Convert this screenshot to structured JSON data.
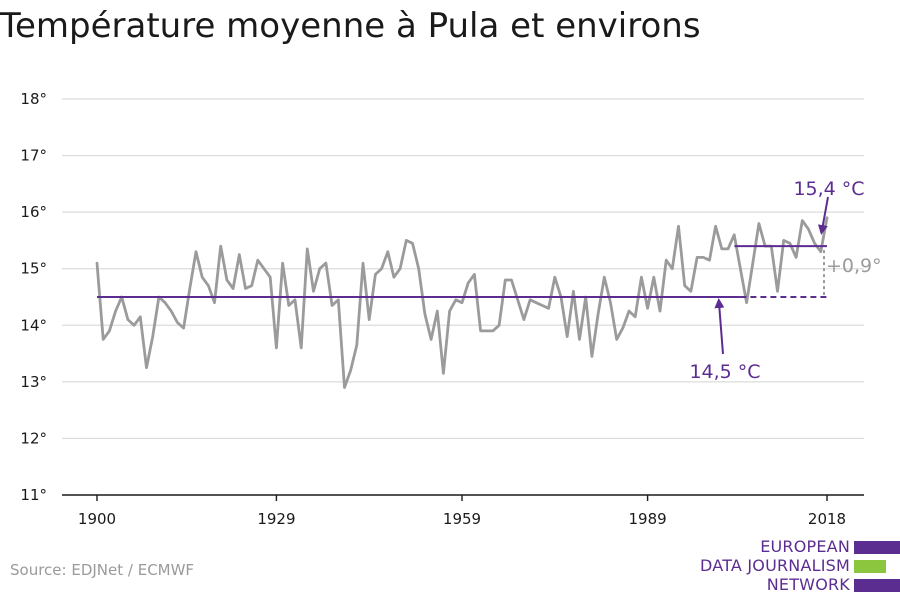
{
  "title": "Température moyenne à Pula et environs",
  "source": "Source: EDJNet / ECMWF",
  "logo": {
    "lines": [
      "EUROPEAN",
      "DATA JOURNALISM",
      "NETWORK"
    ],
    "colors": {
      "text": "#5c2d91",
      "bar": "#5c2d91",
      "accent": "#8cc63f"
    }
  },
  "colors": {
    "series": "#9b9b9b",
    "baseline": "#5c2d91",
    "grid": "#dcdcdc",
    "axis": "#1a1a1a",
    "label": "#1a1a1a",
    "delta": "#9b9b9b"
  },
  "chart_data": {
    "type": "line",
    "title": "Température moyenne à Pula et environs",
    "xlabel": "",
    "ylabel": "",
    "xlim": [
      1900,
      2018
    ],
    "ylim": [
      11,
      18
    ],
    "grid": true,
    "x_ticks": [
      1900,
      1929,
      1959,
      1989,
      2018
    ],
    "y_ticks": [
      {
        "value": 11,
        "label": "11°"
      },
      {
        "value": 12,
        "label": "12°"
      },
      {
        "value": 13,
        "label": "13°"
      },
      {
        "value": 14,
        "label": "14°"
      },
      {
        "value": 15,
        "label": "15°"
      },
      {
        "value": 16,
        "label": "16°"
      },
      {
        "value": 17,
        "label": "17°"
      },
      {
        "value": 18,
        "label": "18°"
      }
    ],
    "series": [
      {
        "x": [
          1900,
          1901,
          1902,
          1903,
          1904,
          1905,
          1906,
          1907,
          1908,
          1909,
          1910,
          1911,
          1912,
          1913,
          1914,
          1915,
          1916,
          1917,
          1918,
          1919,
          1920,
          1921,
          1922,
          1923,
          1924,
          1925,
          1926,
          1927,
          1928,
          1929,
          1930,
          1931,
          1932,
          1933,
          1934,
          1935,
          1936,
          1937,
          1938,
          1939,
          1940,
          1941,
          1942,
          1943,
          1944,
          1945,
          1946,
          1947,
          1948,
          1949,
          1950,
          1951,
          1952,
          1953,
          1954,
          1955,
          1956,
          1957,
          1958,
          1959,
          1960,
          1961,
          1962,
          1963,
          1964,
          1965,
          1966,
          1967,
          1968,
          1969,
          1970,
          1971,
          1972,
          1973,
          1974,
          1975,
          1976,
          1977,
          1978,
          1979,
          1980,
          1981,
          1982,
          1983,
          1984,
          1985,
          1986,
          1987,
          1988,
          1989,
          1990,
          1991,
          1992,
          1993,
          1994,
          1995,
          1996,
          1997,
          1998,
          1999,
          2000,
          2001,
          2002,
          2003,
          2004,
          2005,
          2006,
          2007,
          2008,
          2009,
          2010,
          2011,
          2012,
          2013,
          2014,
          2015,
          2016,
          2017,
          2018
        ],
        "values": [
          15.1,
          13.75,
          13.9,
          14.25,
          14.5,
          14.1,
          14.0,
          14.15,
          13.25,
          13.8,
          14.5,
          14.4,
          14.25,
          14.05,
          13.95,
          14.65,
          15.3,
          14.85,
          14.7,
          14.4,
          15.4,
          14.8,
          14.65,
          15.25,
          14.65,
          14.7,
          15.15,
          15.0,
          14.85,
          13.6,
          15.1,
          14.35,
          14.45,
          13.6,
          15.35,
          14.6,
          15.0,
          15.1,
          14.35,
          14.45,
          12.9,
          13.2,
          13.65,
          15.1,
          14.1,
          14.9,
          15.0,
          15.3,
          14.85,
          15.0,
          15.5,
          15.45,
          15.0,
          14.2,
          13.75,
          14.25,
          13.15,
          14.25,
          14.45,
          14.4,
          14.75,
          14.9,
          13.9,
          13.9,
          13.9,
          14.0,
          14.8,
          14.8,
          14.45,
          14.1,
          14.45,
          14.4,
          14.35,
          14.3,
          14.85,
          14.5,
          13.8,
          14.6,
          13.75,
          14.5,
          13.45,
          14.2,
          14.85,
          14.4,
          13.75,
          13.95,
          14.25,
          14.15,
          14.85,
          14.3,
          14.85,
          14.25,
          15.15,
          15.0,
          15.75,
          14.7,
          14.6,
          15.2,
          15.2,
          15.15,
          15.75,
          15.35,
          15.35,
          15.6,
          15.0,
          14.4,
          15.1,
          15.8,
          15.4,
          15.4,
          14.6,
          15.5,
          15.45,
          15.2,
          15.85,
          15.7,
          15.45,
          15.3,
          15.9
        ]
      }
    ],
    "annotations": [
      {
        "label": "14,5 °C",
        "value": 14.5,
        "from": 1900,
        "to": 2018,
        "dashed_from": 2004
      },
      {
        "label": "15,4 °C",
        "value": 15.4,
        "from": 2004,
        "to": 2018
      },
      {
        "label": "+0,9°"
      }
    ]
  }
}
